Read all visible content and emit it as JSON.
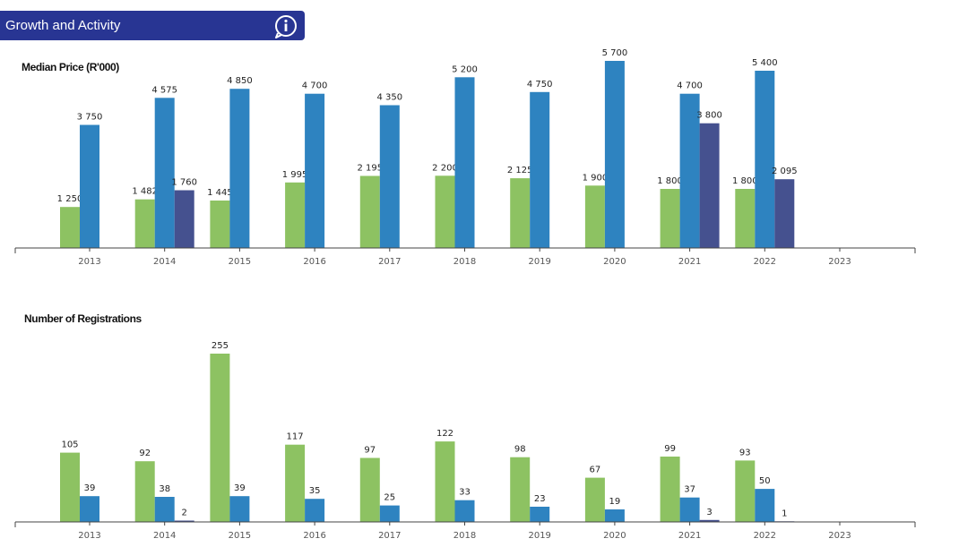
{
  "header": {
    "title": "Growth and Activity",
    "bar_color": "#283593",
    "info_icon": "info-icon"
  },
  "colors": {
    "series_1": "#8dc262",
    "series_2": "#2e83c0",
    "series_3": "#45518f",
    "axis": "#444444"
  },
  "chart_data": [
    {
      "type": "bar",
      "title": "Median Price (R'000)",
      "xlabel": "",
      "ylabel": "",
      "ylim": [
        0,
        5700
      ],
      "categories": [
        "2013",
        "2014",
        "2015",
        "2016",
        "2017",
        "2018",
        "2019",
        "2020",
        "2021",
        "2022",
        "2023"
      ],
      "series": [
        {
          "name": "series_1",
          "color": "#8dc262",
          "values": [
            1250,
            1482,
            1445,
            1995,
            2195,
            2200,
            2125,
            1900,
            1800,
            1800,
            null
          ],
          "labels": [
            "1 250",
            "1 482",
            "1 445",
            "1 995",
            "2 195",
            "2 200",
            "2 125",
            "1 900",
            "1 800",
            "1 800",
            null
          ]
        },
        {
          "name": "series_2",
          "color": "#2e83c0",
          "values": [
            3750,
            4575,
            4850,
            4700,
            4350,
            5200,
            4750,
            5700,
            4700,
            5400,
            null
          ],
          "labels": [
            "3 750",
            "4 575",
            "4 850",
            "4 700",
            "4 350",
            "5 200",
            "4 750",
            "5 700",
            "4 700",
            "5 400",
            null
          ]
        },
        {
          "name": "series_3",
          "color": "#45518f",
          "values": [
            null,
            1760,
            null,
            null,
            null,
            null,
            null,
            null,
            3800,
            2095,
            null
          ],
          "labels": [
            null,
            "1 760",
            null,
            null,
            null,
            null,
            null,
            null,
            "3 800",
            "2 095",
            null
          ]
        }
      ]
    },
    {
      "type": "bar",
      "title": "Number of Registrations",
      "xlabel": "",
      "ylabel": "",
      "ylim": [
        0,
        255
      ],
      "categories": [
        "2013",
        "2014",
        "2015",
        "2016",
        "2017",
        "2018",
        "2019",
        "2020",
        "2021",
        "2022",
        "2023"
      ],
      "series": [
        {
          "name": "series_1",
          "color": "#8dc262",
          "values": [
            105,
            92,
            255,
            117,
            97,
            122,
            98,
            67,
            99,
            93,
            null
          ],
          "labels": [
            "105",
            "92",
            "255",
            "117",
            "97",
            "122",
            "98",
            "67",
            "99",
            "93",
            null
          ]
        },
        {
          "name": "series_2",
          "color": "#2e83c0",
          "values": [
            39,
            38,
            39,
            35,
            25,
            33,
            23,
            19,
            37,
            50,
            null
          ],
          "labels": [
            "39",
            "38",
            "39",
            "35",
            "25",
            "33",
            "23",
            "19",
            "37",
            "50",
            null
          ]
        },
        {
          "name": "series_3",
          "color": "#45518f",
          "values": [
            null,
            2,
            null,
            null,
            null,
            null,
            null,
            null,
            3,
            1,
            null
          ],
          "labels": [
            null,
            "2",
            null,
            null,
            null,
            null,
            null,
            null,
            "3",
            "1",
            null
          ]
        }
      ]
    }
  ]
}
